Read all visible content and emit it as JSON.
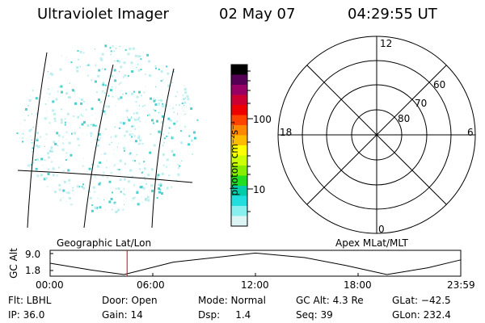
{
  "header": {
    "instrument": "Ultraviolet Imager",
    "date": "02 May 07",
    "time": "04:29:55 UT"
  },
  "geo_panel": {
    "label": "Geographic Lat/Lon"
  },
  "polar_panel": {
    "label": "Apex MLat/MLT",
    "mlt_labels": {
      "top": "12",
      "right": "6",
      "bottom": "0",
      "left": "18"
    },
    "lat_labels": [
      "60",
      "70",
      "80"
    ]
  },
  "colorbar": {
    "unit": "photon cm⁻²s⁻¹",
    "tick_labels": [
      "100",
      "10"
    ],
    "colors": [
      "#000000",
      "#550055",
      "#990066",
      "#cc0033",
      "#ee0000",
      "#ff4400",
      "#ff8800",
      "#ffbb00",
      "#ffff00",
      "#ccff00",
      "#88ee00",
      "#22dd22",
      "#00ccaa",
      "#22dddd",
      "#88eeee",
      "#ddf5f5"
    ]
  },
  "timeline": {
    "y_label": "GC Alt",
    "y_ticks": [
      "9.0",
      "1.8"
    ],
    "x_ticks": [
      "00:00",
      "06:00",
      "12:00",
      "18:00",
      "23:59"
    ],
    "marker_time": "04:29:55",
    "marker_color": "#dd0000"
  },
  "footer": {
    "flt": "Flt: LBHL",
    "ip": "IP: 36.0",
    "door": "Door: Open",
    "gain": "Gain: 14",
    "mode": "Mode: Normal",
    "dsp": "Dsp:     1.4",
    "gcalt": "GC Alt: 4.3 Re",
    "seq": "Seq: 39",
    "glat": "GLat: −42.5",
    "glon": "GLon: 232.4"
  },
  "colors": {
    "speckle": "#4fd0d0",
    "speckle_light": "#bfeeee"
  }
}
